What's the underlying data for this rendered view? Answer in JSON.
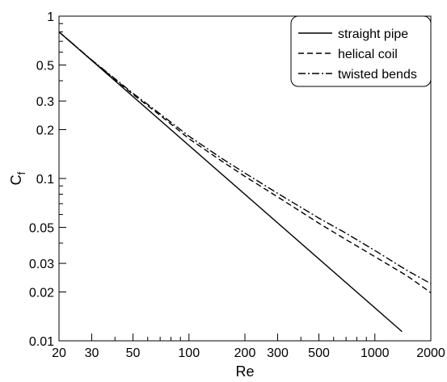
{
  "chart_data": {
    "type": "line",
    "title": "",
    "xlabel": "Re",
    "ylabel": "C",
    "ylabel_subscript": "f",
    "xscale": "log",
    "yscale": "log",
    "xlim": [
      20,
      2000
    ],
    "ylim": [
      0.01,
      1
    ],
    "grid": false,
    "legend_position": "top-right",
    "x_ticks": [
      20,
      30,
      50,
      100,
      200,
      300,
      500,
      1000,
      2000
    ],
    "x_tick_labels": [
      "20",
      "30",
      "50",
      "100",
      "200",
      "300",
      "500",
      "1000",
      "2000"
    ],
    "y_ticks": [
      0.01,
      0.02,
      0.03,
      0.05,
      0.1,
      0.2,
      0.3,
      0.5,
      1
    ],
    "y_tick_labels": [
      "0.01",
      "0.02",
      "0.03",
      "0.05",
      "0.1",
      "0.2",
      "0.3",
      "0.5",
      "1"
    ],
    "series": [
      {
        "name": "straight pipe",
        "dash": "solid",
        "color": "#000000",
        "points": [
          [
            20,
            0.8
          ],
          [
            1400,
            0.0114
          ]
        ]
      },
      {
        "name": "helical coil",
        "dash": "dashed",
        "color": "#000000",
        "points": [
          [
            20,
            0.8
          ],
          [
            30,
            0.535
          ],
          [
            50,
            0.33
          ],
          [
            70,
            0.245
          ],
          [
            100,
            0.176
          ],
          [
            150,
            0.128
          ],
          [
            200,
            0.103
          ],
          [
            300,
            0.077
          ],
          [
            500,
            0.053
          ],
          [
            700,
            0.042
          ],
          [
            1000,
            0.033
          ],
          [
            1500,
            0.025
          ],
          [
            2000,
            0.0198
          ]
        ]
      },
      {
        "name": "twisted bends",
        "dash": "dashdot",
        "color": "#000000",
        "points": [
          [
            20,
            0.8
          ],
          [
            30,
            0.537
          ],
          [
            50,
            0.335
          ],
          [
            70,
            0.25
          ],
          [
            100,
            0.182
          ],
          [
            150,
            0.133
          ],
          [
            200,
            0.108
          ],
          [
            300,
            0.081
          ],
          [
            500,
            0.057
          ],
          [
            700,
            0.046
          ],
          [
            1000,
            0.036
          ],
          [
            1500,
            0.027
          ],
          [
            2000,
            0.0225
          ]
        ]
      }
    ]
  }
}
